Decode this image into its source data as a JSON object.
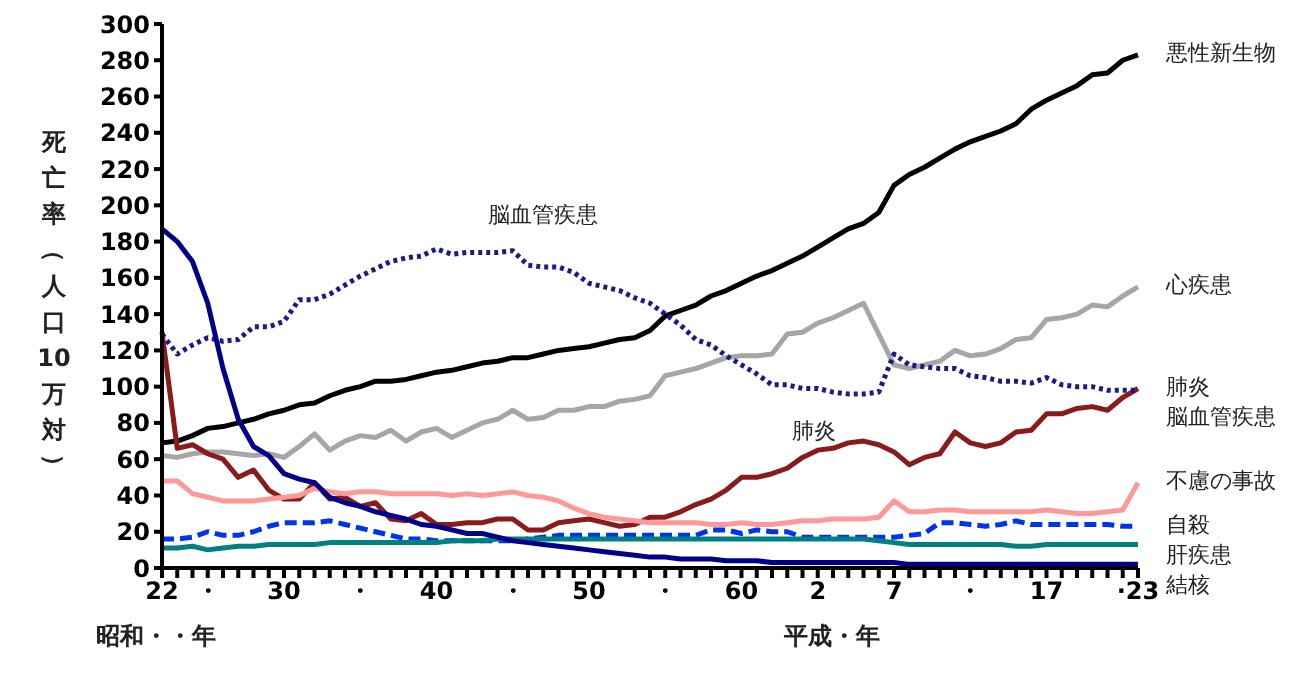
{
  "chart_data": {
    "type": "line",
    "ylabel": "死亡率（人口10万対）",
    "xlabel": "昭和・・年",
    "annotations": [
      "平成・年",
      "脳血管疾患",
      "肺炎"
    ],
    "categories": [
      "22",
      null,
      null,
      "・",
      null,
      null,
      null,
      null,
      "30",
      null,
      null,
      null,
      null,
      "・",
      null,
      null,
      null,
      null,
      "40",
      null,
      null,
      null,
      null,
      "・",
      null,
      null,
      null,
      null,
      "50",
      null,
      null,
      null,
      null,
      "・",
      null,
      null,
      null,
      null,
      "60",
      null,
      null,
      null,
      null,
      "2",
      null,
      null,
      null,
      null,
      "7",
      null,
      null,
      null,
      null,
      "・",
      null,
      null,
      null,
      null,
      "17",
      null,
      null,
      null,
      null,
      null,
      "·23"
    ],
    "ylim": [
      0,
      300
    ],
    "yticks": [
      0,
      20,
      40,
      60,
      80,
      100,
      120,
      140,
      160,
      180,
      200,
      220,
      240,
      260,
      280,
      300
    ],
    "grid": false,
    "legend": false,
    "marker": "none",
    "series": [
      {
        "name": "悪性新生物",
        "color": "#000000",
        "line_style": "solid",
        "values": [
          69,
          70,
          73,
          77,
          78,
          80,
          82,
          85,
          87,
          90,
          91,
          95,
          98,
          100,
          103,
          103,
          104,
          106,
          108,
          109,
          111,
          113,
          114,
          116,
          116,
          118,
          120,
          121,
          122,
          124,
          126,
          127,
          131,
          139,
          142,
          145,
          150,
          153,
          157,
          161,
          164,
          168,
          172,
          177,
          182,
          187,
          190,
          196,
          211,
          217,
          221,
          226,
          231,
          235,
          238,
          241,
          245,
          253,
          258,
          262,
          266,
          272,
          273,
          280,
          283
        ]
      },
      {
        "name": "心疾患",
        "color": "#a6a6a6",
        "line_style": "solid",
        "values": [
          62,
          61,
          63,
          64,
          64,
          63,
          62,
          63,
          61,
          67,
          74,
          65,
          70,
          73,
          72,
          76,
          70,
          75,
          77,
          72,
          76,
          80,
          82,
          87,
          82,
          83,
          87,
          87,
          89,
          89,
          92,
          93,
          95,
          106,
          108,
          110,
          113,
          116,
          117,
          117,
          118,
          129,
          130,
          135,
          138,
          142,
          146,
          129,
          112,
          110,
          112,
          114,
          120,
          117,
          118,
          121,
          126,
          127,
          137,
          138,
          140,
          145,
          144,
          150,
          155
        ]
      },
      {
        "name": "肺炎",
        "color": "#8b1a1a",
        "line_style": "solid",
        "values": [
          130,
          66,
          68,
          63,
          60,
          50,
          54,
          43,
          38,
          38,
          47,
          38,
          39,
          34,
          36,
          27,
          26,
          30,
          24,
          24,
          25,
          25,
          27,
          27,
          21,
          21,
          25,
          26,
          27,
          25,
          23,
          24,
          28,
          28,
          31,
          35,
          38,
          43,
          50,
          50,
          52,
          55,
          61,
          65,
          66,
          69,
          70,
          68,
          64,
          57,
          61,
          63,
          75,
          69,
          67,
          69,
          75,
          76,
          85,
          85,
          88,
          89,
          87,
          94,
          99
        ]
      },
      {
        "name": "脳血管疾患",
        "color": "#1a1a8c",
        "line_style": "dotted",
        "values": [
          129,
          118,
          123,
          127,
          125,
          126,
          133,
          133,
          136,
          148,
          148,
          151,
          156,
          161,
          165,
          169,
          171,
          172,
          176,
          173,
          174,
          174,
          174,
          175,
          167,
          166,
          166,
          163,
          157,
          155,
          153,
          149,
          146,
          140,
          134,
          126,
          123,
          117,
          112,
          107,
          101,
          101,
          99,
          99,
          97,
          96,
          96,
          97,
          118,
          112,
          111,
          110,
          110,
          106,
          105,
          103,
          103,
          102,
          105,
          101,
          100,
          100,
          98,
          98,
          98
        ]
      },
      {
        "name": "不慮の事故",
        "color": "#ff9999",
        "line_style": "solid",
        "values": [
          48,
          48,
          41,
          39,
          37,
          37,
          37,
          38,
          39,
          40,
          44,
          42,
          41,
          42,
          42,
          41,
          41,
          41,
          41,
          40,
          41,
          40,
          41,
          42,
          40,
          39,
          37,
          33,
          30,
          28,
          27,
          26,
          25,
          25,
          25,
          25,
          24,
          24,
          25,
          24,
          24,
          25,
          26,
          26,
          27,
          27,
          27,
          28,
          37,
          31,
          31,
          32,
          32,
          31,
          31,
          31,
          31,
          31,
          32,
          31,
          30,
          30,
          31,
          32,
          47
        ]
      },
      {
        "name": "自殺",
        "color": "#0033ee",
        "line_style": "dashed",
        "values": [
          16,
          16,
          17,
          20,
          18,
          18,
          20,
          23,
          25,
          25,
          25,
          26,
          24,
          22,
          20,
          18,
          16,
          16,
          15,
          15,
          15,
          15,
          15,
          15,
          16,
          17,
          18,
          18,
          18,
          18,
          18,
          18,
          18,
          18,
          18,
          18,
          21,
          21,
          19,
          21,
          20,
          20,
          17,
          17,
          17,
          17,
          17,
          17,
          17,
          18,
          19,
          25,
          25,
          24,
          23,
          24,
          26,
          24,
          24,
          24,
          24,
          24,
          24,
          23,
          23
        ]
      },
      {
        "name": "肝疾患",
        "color": "#008080",
        "line_style": "solid",
        "values": [
          11,
          11,
          12,
          10,
          11,
          12,
          12,
          13,
          13,
          13,
          13,
          14,
          14,
          14,
          14,
          14,
          14,
          14,
          14,
          15,
          15,
          15,
          16,
          16,
          16,
          16,
          16,
          16,
          16,
          16,
          16,
          16,
          16,
          16,
          16,
          16,
          16,
          16,
          16,
          16,
          16,
          16,
          16,
          16,
          16,
          16,
          16,
          15,
          14,
          13,
          13,
          13,
          13,
          13,
          13,
          13,
          12,
          12,
          13,
          13,
          13,
          13,
          13,
          13,
          13
        ]
      },
      {
        "name": "結核",
        "color": "#00008b",
        "line_style": "solid",
        "values": [
          187,
          180,
          169,
          146,
          110,
          82,
          67,
          62,
          52,
          49,
          47,
          39,
          36,
          34,
          31,
          29,
          27,
          24,
          23,
          21,
          19,
          19,
          17,
          15,
          14,
          13,
          12,
          11,
          10,
          9,
          8,
          7,
          6,
          6,
          5,
          5,
          5,
          4,
          4,
          4,
          3,
          3,
          3,
          3,
          3,
          3,
          3,
          3,
          3,
          2,
          2,
          2,
          2,
          2,
          2,
          2,
          2,
          2,
          2,
          2,
          2,
          2,
          2,
          2,
          2
        ]
      }
    ]
  }
}
